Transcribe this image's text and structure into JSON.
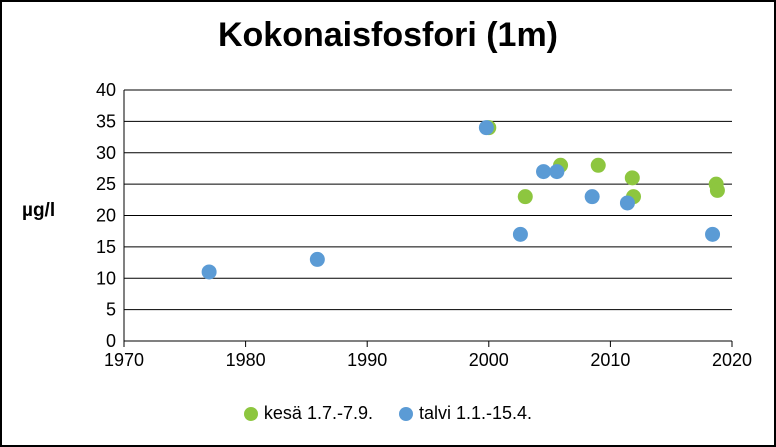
{
  "chart_data": {
    "type": "scatter",
    "title": "Kokonaisfosfori (1m)",
    "xlabel": "",
    "ylabel": "µg/l",
    "xlim": [
      1970,
      2020
    ],
    "ylim": [
      0,
      40
    ],
    "x_ticks": [
      "1970",
      "1980",
      "1990",
      "2000",
      "2010",
      "2020"
    ],
    "y_ticks": [
      "0",
      "5",
      "10",
      "15",
      "20",
      "25",
      "30",
      "35",
      "40"
    ],
    "grid": "horizontal",
    "legend_position": "bottom",
    "series": [
      {
        "name": "kesä 1.7.-7.9.",
        "color": "#8dc63f",
        "points": [
          {
            "x": 2000.0,
            "y": 34
          },
          {
            "x": 2003.0,
            "y": 23
          },
          {
            "x": 2005.9,
            "y": 28
          },
          {
            "x": 2009.0,
            "y": 28
          },
          {
            "x": 2011.8,
            "y": 26
          },
          {
            "x": 2011.9,
            "y": 23
          },
          {
            "x": 2018.7,
            "y": 25
          },
          {
            "x": 2018.8,
            "y": 24
          }
        ]
      },
      {
        "name": "talvi 1.1.-15.4.",
        "color": "#5b9bd5",
        "points": [
          {
            "x": 1977.0,
            "y": 11
          },
          {
            "x": 1985.9,
            "y": 13
          },
          {
            "x": 1999.8,
            "y": 34
          },
          {
            "x": 2002.6,
            "y": 17
          },
          {
            "x": 2004.5,
            "y": 27
          },
          {
            "x": 2005.6,
            "y": 27
          },
          {
            "x": 2008.5,
            "y": 23
          },
          {
            "x": 2011.4,
            "y": 22
          },
          {
            "x": 2018.4,
            "y": 17
          }
        ]
      }
    ]
  }
}
